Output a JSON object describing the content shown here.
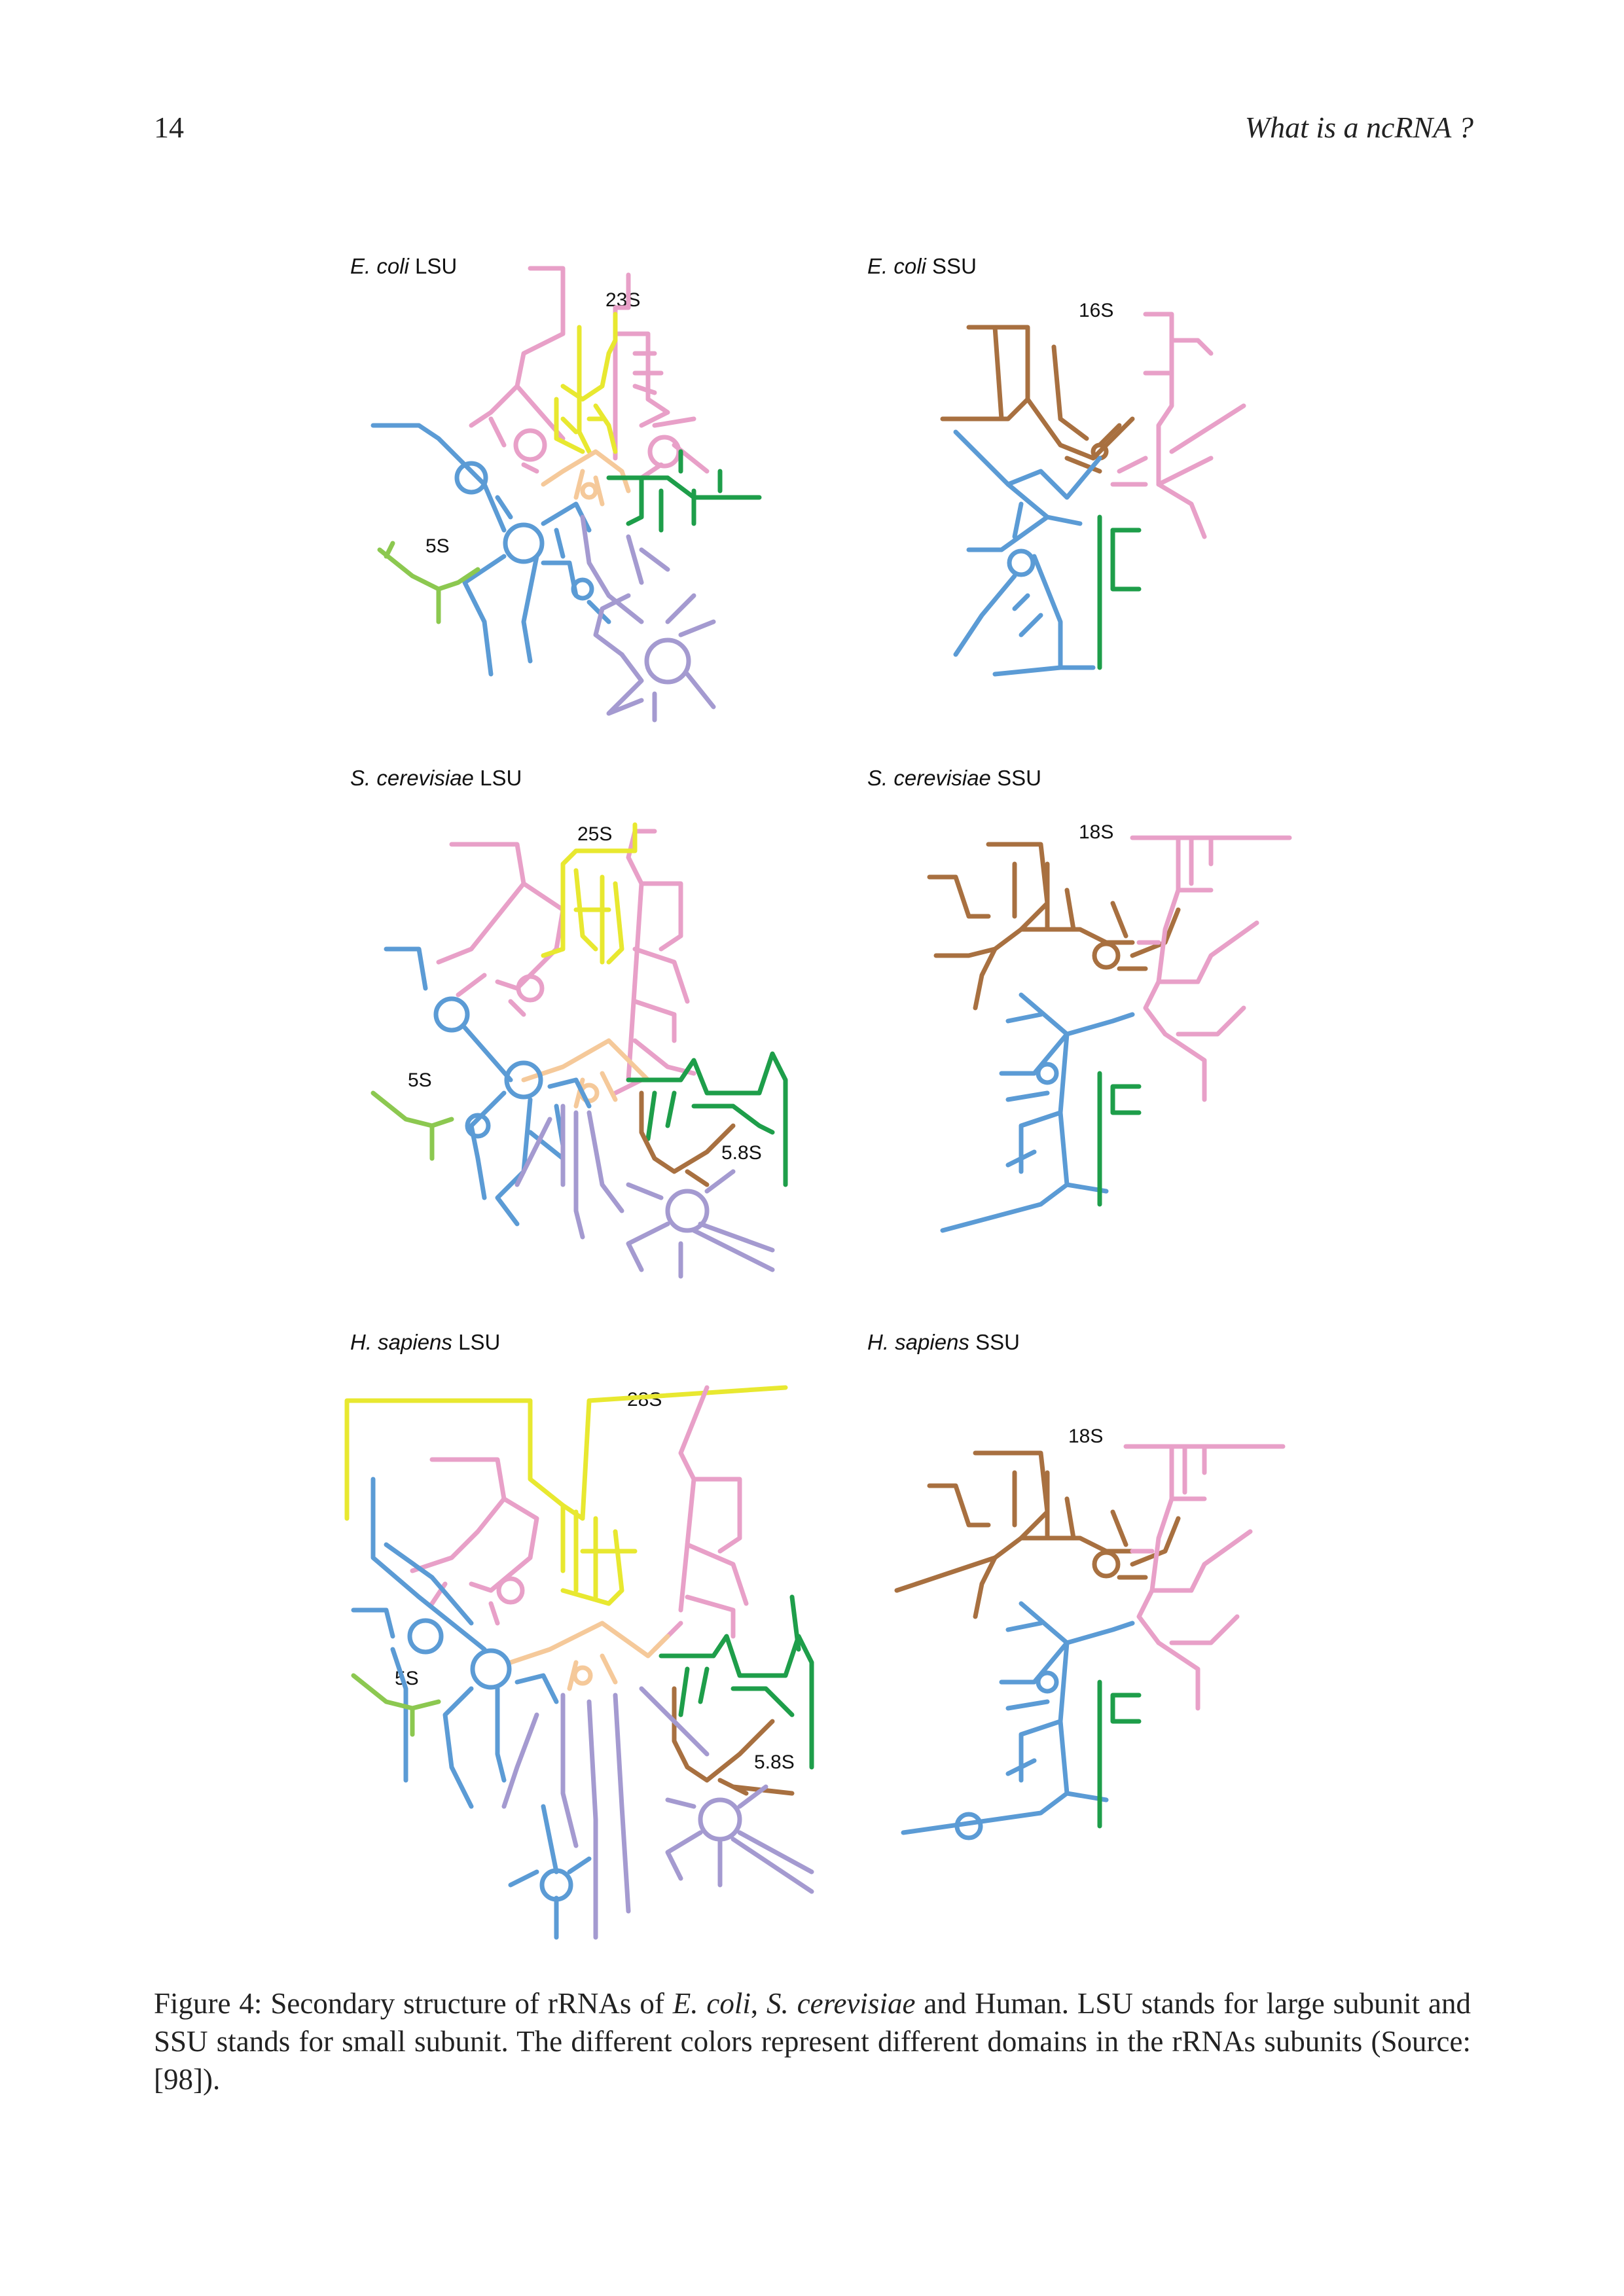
{
  "header": {
    "page_number": "14",
    "running_title": "What is a ncRNA ?"
  },
  "panels": [
    {
      "species": "E. coli",
      "subunit": "LSU",
      "labels": [
        "23S",
        "5S"
      ]
    },
    {
      "species": "E. coli",
      "subunit": "SSU",
      "labels": [
        "16S"
      ]
    },
    {
      "species": "S. cerevisiae",
      "subunit": "LSU",
      "labels": [
        "25S",
        "5S",
        "5.8S"
      ]
    },
    {
      "species": "S. cerevisiae",
      "subunit": "SSU",
      "labels": [
        "18S"
      ]
    },
    {
      "species": "H. sapiens",
      "subunit": "LSU",
      "labels": [
        "28S",
        "5S",
        "5.8S"
      ]
    },
    {
      "species": "H. sapiens",
      "subunit": "SSU",
      "labels": [
        "18S"
      ]
    }
  ],
  "caption": {
    "prefix": "Figure 4: Secondary structure of rRNAs of ",
    "sp1": "E. coli",
    "sep1": ", ",
    "sp2": "S. cerevisiae",
    "rest": " and Human. LSU stands for large subunit and SSU stands for small subunit. The different colors represent different domains in the rRNAs subunits (Source: [98])."
  },
  "domain_colors": {
    "blue": "#5b9bd5",
    "pink": "#e8a0c8",
    "yellow": "#e8e830",
    "peach": "#f5c99a",
    "green": "#1e9e4a",
    "lime": "#8cc850",
    "purple": "#a49ad0",
    "brown": "#a87040"
  }
}
